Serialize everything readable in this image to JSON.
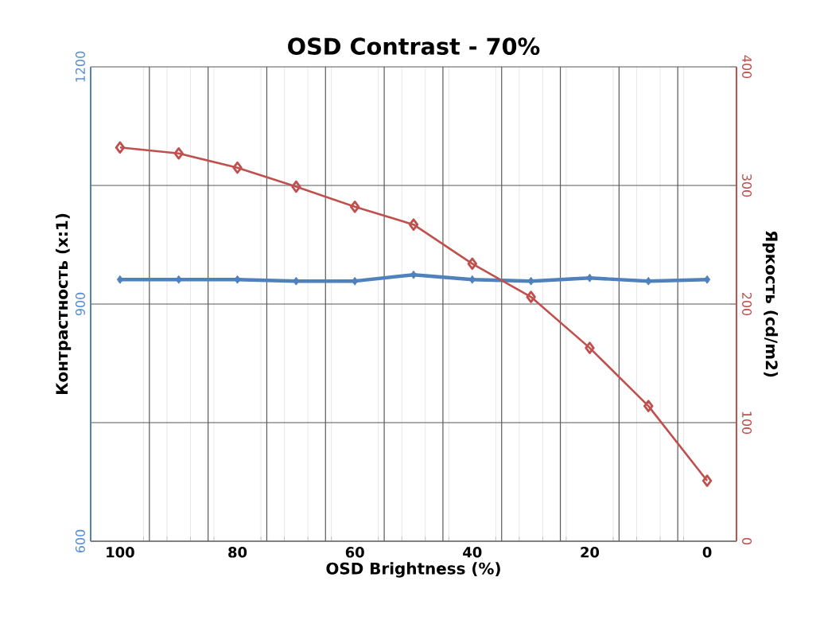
{
  "chart_data": {
    "type": "line",
    "title": "OSD Contrast - 70%",
    "xlabel": "OSD Brightness (%)",
    "ylabel": "Контрастность (x:1)",
    "y2label": "Яркость (cd/m2)",
    "x": [
      100,
      90,
      80,
      70,
      60,
      50,
      40,
      30,
      20,
      10,
      0
    ],
    "xlim": [
      105,
      -5
    ],
    "xticks": [
      {
        "value": 100,
        "label": "100"
      },
      {
        "value": 95,
        "label": null
      },
      {
        "value": 85,
        "label": null
      },
      {
        "value": 80,
        "label": "80"
      },
      {
        "value": 75,
        "label": null
      },
      {
        "value": 65,
        "label": null
      },
      {
        "value": 60,
        "label": "60"
      },
      {
        "value": 55,
        "label": null
      },
      {
        "value": 45,
        "label": null
      },
      {
        "value": 40,
        "label": "40"
      },
      {
        "value": 35,
        "label": null
      },
      {
        "value": 25,
        "label": null
      },
      {
        "value": 20,
        "label": "20"
      },
      {
        "value": 15,
        "label": null
      },
      {
        "value": 5,
        "label": null
      },
      {
        "value": 0,
        "label": "0"
      }
    ],
    "ylim": [
      600,
      1200
    ],
    "yticks": [
      600,
      {
        "value": 750,
        "label": null
      },
      900,
      {
        "value": 1050,
        "label": null
      },
      1200
    ],
    "y2lim": [
      0,
      400
    ],
    "y2ticks": [
      0,
      100,
      200,
      300,
      400
    ],
    "grid": true,
    "marker": "diamond",
    "series": [
      {
        "color": "#4f81bd",
        "values": [
          931,
          931,
          931,
          929,
          929,
          937,
          931,
          929,
          933,
          929,
          931
        ]
      },
      {
        "color": "#c0504d",
        "axis": "y2",
        "values": [
          332,
          327,
          315,
          299,
          282,
          267,
          234,
          206,
          163,
          114,
          51
        ]
      }
    ]
  }
}
